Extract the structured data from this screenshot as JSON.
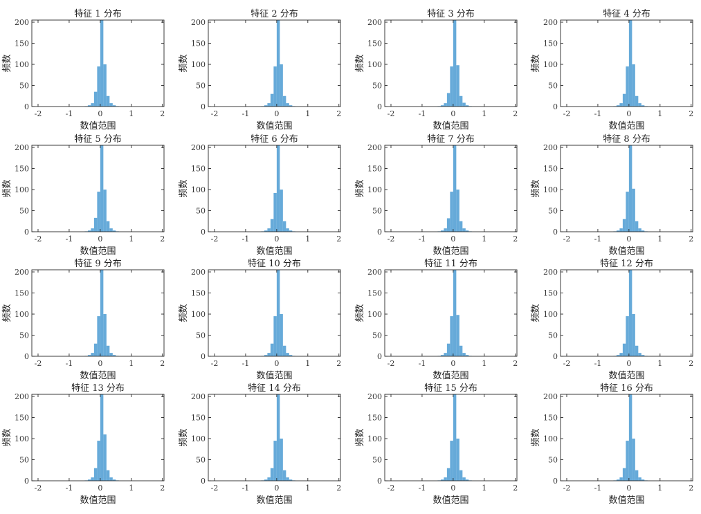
{
  "figure": {
    "bar_color": "#66aad9",
    "axes_color": "#262626",
    "panels": [
      {
        "title": "特征 1 分布"
      },
      {
        "title": "特征 2 分布"
      },
      {
        "title": "特征 3 分布"
      },
      {
        "title": "特征 4 分布"
      },
      {
        "title": "特征 5 分布"
      },
      {
        "title": "特征 6 分布"
      },
      {
        "title": "特征 7 分布"
      },
      {
        "title": "特征 8 分布"
      },
      {
        "title": "特征 9 分布"
      },
      {
        "title": "特征 10 分布"
      },
      {
        "title": "特征 11 分布"
      },
      {
        "title": "特征 12 分布"
      },
      {
        "title": "特征 13 分布"
      },
      {
        "title": "特征 14 分布"
      },
      {
        "title": "特征 15 分布"
      },
      {
        "title": "特征 16 分布"
      }
    ]
  },
  "chart_data": {
    "type": "bar",
    "subtype": "histogram-grid",
    "grid": "off",
    "rows": 4,
    "cols": 4,
    "xlabel": "数值范围",
    "ylabel": "频数",
    "xlim": [
      -2.2,
      2.05
    ],
    "ylim": [
      0,
      205
    ],
    "xticks": [
      -2,
      -1,
      0,
      1,
      2
    ],
    "yticks": [
      0,
      50,
      100,
      150,
      200
    ],
    "bin_width": 0.1,
    "bin_centers": [
      -0.45,
      -0.35,
      -0.25,
      -0.15,
      -0.05,
      0.05,
      0.15,
      0.25,
      0.35,
      0.45,
      0.55
    ],
    "histograms": [
      {
        "name": "特征 1 分布",
        "values": [
          1,
          3,
          8,
          35,
          95,
          205,
          100,
          25,
          8,
          3,
          1
        ]
      },
      {
        "name": "特征 2 分布",
        "values": [
          1,
          3,
          8,
          30,
          95,
          205,
          100,
          25,
          8,
          3,
          1
        ]
      },
      {
        "name": "特征 3 分布",
        "values": [
          1,
          3,
          8,
          32,
          95,
          205,
          98,
          25,
          9,
          3,
          1
        ]
      },
      {
        "name": "特征 4 分布",
        "values": [
          1,
          3,
          8,
          30,
          95,
          205,
          100,
          25,
          8,
          3,
          1
        ]
      },
      {
        "name": "特征 5 分布",
        "values": [
          1,
          3,
          8,
          33,
          95,
          205,
          100,
          25,
          8,
          3,
          1
        ]
      },
      {
        "name": "特征 6 分布",
        "values": [
          1,
          3,
          8,
          30,
          92,
          205,
          100,
          25,
          8,
          3,
          1
        ]
      },
      {
        "name": "特征 7 分布",
        "values": [
          1,
          3,
          8,
          32,
          95,
          205,
          100,
          25,
          8,
          3,
          1
        ]
      },
      {
        "name": "特征 8 分布",
        "values": [
          1,
          3,
          8,
          30,
          95,
          205,
          102,
          25,
          8,
          3,
          1
        ]
      },
      {
        "name": "特征 9 分布",
        "values": [
          1,
          3,
          8,
          30,
          95,
          205,
          100,
          25,
          8,
          3,
          1
        ]
      },
      {
        "name": "特征 10 分布",
        "values": [
          1,
          3,
          8,
          30,
          95,
          205,
          100,
          25,
          8,
          3,
          1
        ]
      },
      {
        "name": "特征 11 分布",
        "values": [
          1,
          3,
          8,
          30,
          95,
          205,
          98,
          25,
          8,
          3,
          1
        ]
      },
      {
        "name": "特征 12 分布",
        "values": [
          1,
          3,
          8,
          30,
          95,
          205,
          100,
          25,
          8,
          3,
          1
        ]
      },
      {
        "name": "特征 13 分布",
        "values": [
          1,
          3,
          8,
          30,
          95,
          205,
          110,
          25,
          8,
          3,
          1
        ]
      },
      {
        "name": "特征 14 分布",
        "values": [
          1,
          3,
          8,
          30,
          95,
          205,
          100,
          25,
          8,
          3,
          1
        ]
      },
      {
        "name": "特征 15 分布",
        "values": [
          1,
          3,
          8,
          30,
          95,
          205,
          100,
          25,
          8,
          3,
          1
        ]
      },
      {
        "name": "特征 16 分布",
        "values": [
          1,
          3,
          8,
          30,
          95,
          205,
          100,
          25,
          8,
          3,
          1
        ]
      }
    ]
  }
}
